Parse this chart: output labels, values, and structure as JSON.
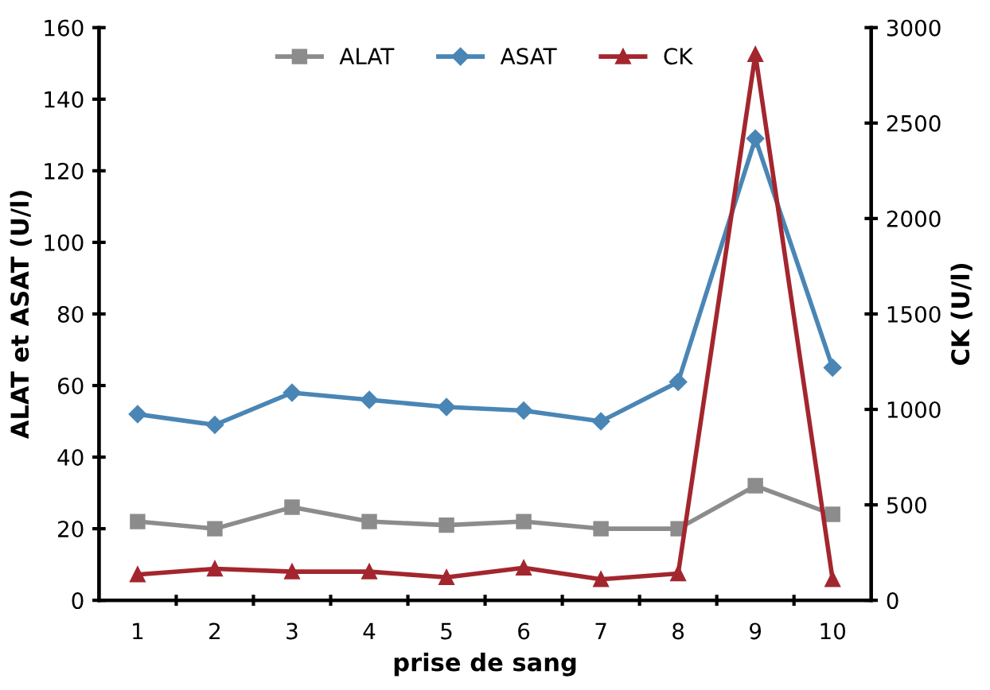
{
  "chart_data": {
    "type": "line",
    "xlabel": "prise de sang",
    "ylabel": "ALAT et ASAT (U/l)",
    "y2label": "CK (U/l)",
    "categories": [
      "1",
      "2",
      "3",
      "4",
      "5",
      "6",
      "7",
      "8",
      "9",
      "10"
    ],
    "series": [
      {
        "name": "ALAT",
        "color": "#8c8c8c",
        "marker": "square",
        "values": [
          22,
          20,
          26,
          22,
          21,
          22,
          20,
          20,
          32,
          24
        ]
      },
      {
        "name": "ASAT",
        "color": "#4a86b5",
        "marker": "diamond",
        "values": [
          52,
          49,
          58,
          56,
          54,
          53,
          50,
          61,
          129,
          65
        ]
      },
      {
        "name": "CK",
        "color": "#a3262e",
        "marker": "triangle",
        "axis": "y2",
        "values": [
          135,
          165,
          150,
          150,
          120,
          170,
          110,
          140,
          2860,
          110
        ]
      }
    ],
    "ylim": [
      0,
      160
    ],
    "yticks": [
      0,
      20,
      40,
      60,
      80,
      100,
      120,
      140,
      160
    ],
    "y2lim": [
      0,
      3000
    ],
    "y2ticks": [
      0,
      500,
      1000,
      1500,
      2000,
      2500,
      3000
    ],
    "grid": false,
    "legend": "top"
  }
}
